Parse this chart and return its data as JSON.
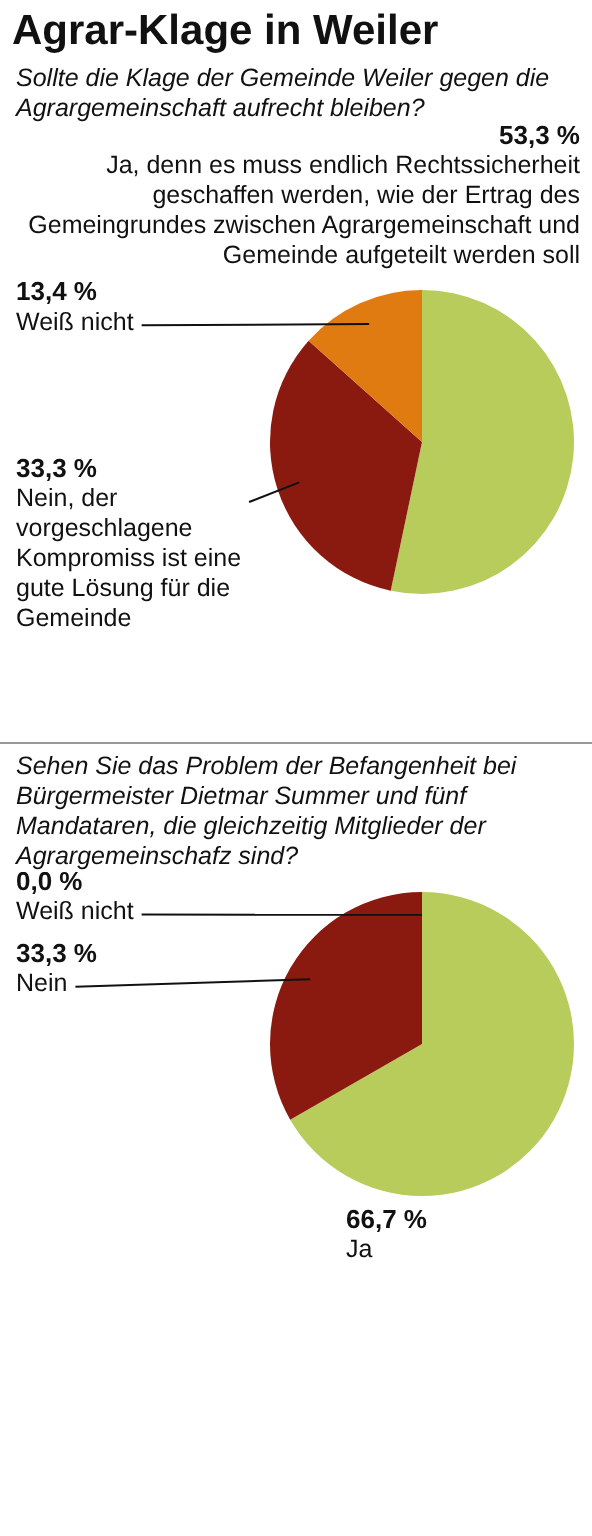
{
  "chart_data": [
    {
      "type": "pie",
      "title": "Agrar-Klage in Weiler",
      "subtitle": "Sollte die Klage der Gemeinde Weiler gegen die Agrargemeinschaft aufrecht bleiben?",
      "categories": [
        "Ja, denn es muss endlich Rechtssicherheit geschaffen werden, wie der Ertrag des Gemeingrundes zwischen Agrargemeinschaft und Gemeinde aufgeteilt werden soll",
        "Nein, der vorgeschlagene Kompromiss ist eine gute Lösung für die Gemeinde",
        "Weiß nicht"
      ],
      "values": [
        53.3,
        33.3,
        13.4
      ],
      "colors": [
        "#b8cc5c",
        "#8a1a10",
        "#e07b12"
      ],
      "value_labels": [
        "53,3 %",
        "33,3 %",
        "13,4 %"
      ]
    },
    {
      "type": "pie",
      "subtitle": "Sehen Sie das Problem der Befangenheit bei Bürgermeister Dietmar Summer und fünf Mandataren, die gleichzeitig Mitglieder der Agrargemeinschafz sind?",
      "categories": [
        "Ja",
        "Nein",
        "Weiß nicht"
      ],
      "values": [
        66.7,
        33.3,
        0.0
      ],
      "colors": [
        "#b8cc5c",
        "#8a1a10",
        "#e07b12"
      ],
      "value_labels": [
        "66,7 %",
        "33,3 %",
        "0,0 %"
      ]
    }
  ]
}
